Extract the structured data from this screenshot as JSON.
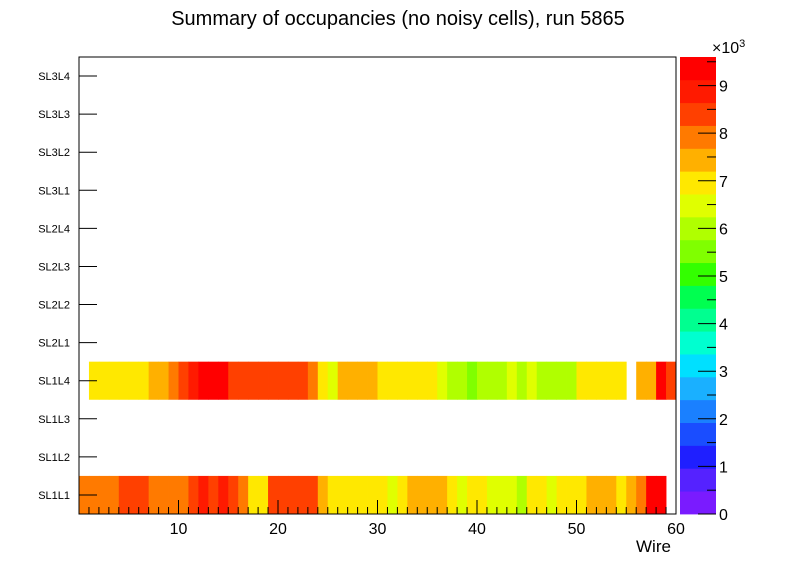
{
  "chart_data": {
    "type": "heatmap",
    "title": "Summary of occupancies (no noisy cells), run 5865",
    "xlabel": "Wire",
    "ylabel": "",
    "xlim": [
      0,
      60
    ],
    "x_ticks": [
      "10",
      "20",
      "30",
      "40",
      "50",
      "60"
    ],
    "y_categories": [
      "SL1L1",
      "SL1L2",
      "SL1L3",
      "SL1L4",
      "SL2L1",
      "SL2L2",
      "SL2L3",
      "SL2L4",
      "SL3L1",
      "SL3L2",
      "SL3L3",
      "SL3L4"
    ],
    "colorbar": {
      "min": 0,
      "max": 9600,
      "exponent_label": "×10",
      "exponent_power": "3",
      "tick_labels": [
        "0",
        "1",
        "2",
        "3",
        "4",
        "5",
        "6",
        "7",
        "8",
        "9"
      ]
    },
    "series": [
      {
        "name": "SL1L1",
        "values": [
          7800,
          7800,
          7800,
          7800,
          8400,
          8400,
          8400,
          7800,
          7800,
          7800,
          7800,
          8400,
          9000,
          8400,
          9000,
          8400,
          7800,
          7000,
          7000,
          8400,
          8400,
          8400,
          8400,
          8400,
          7200,
          7000,
          6800,
          6800,
          6800,
          7000,
          6800,
          6400,
          6900,
          7200,
          7200,
          7200,
          7200,
          6800,
          6500,
          6800,
          7000,
          6700,
          6500,
          6700,
          6200,
          6900,
          6800,
          6500,
          6800,
          7000,
          7000,
          7200,
          7200,
          7200,
          7000,
          7500,
          7800,
          9500,
          9500,
          0
        ]
      },
      {
        "name": "SL1L4",
        "values": [
          0,
          7000,
          7000,
          7000,
          6800,
          6800,
          6800,
          7200,
          7200,
          7800,
          8400,
          9000,
          9500,
          9500,
          9500,
          8400,
          8400,
          8400,
          8400,
          8400,
          8400,
          8400,
          8400,
          7700,
          7000,
          6500,
          7200,
          7200,
          7200,
          7200,
          6900,
          6900,
          6900,
          6900,
          6900,
          6900,
          6600,
          6000,
          6000,
          5500,
          6000,
          6000,
          6000,
          6400,
          5800,
          6300,
          6200,
          6200,
          6200,
          6200,
          7000,
          7000,
          7000,
          7000,
          7000,
          0,
          7200,
          7200,
          9500,
          8400
        ]
      }
    ]
  }
}
